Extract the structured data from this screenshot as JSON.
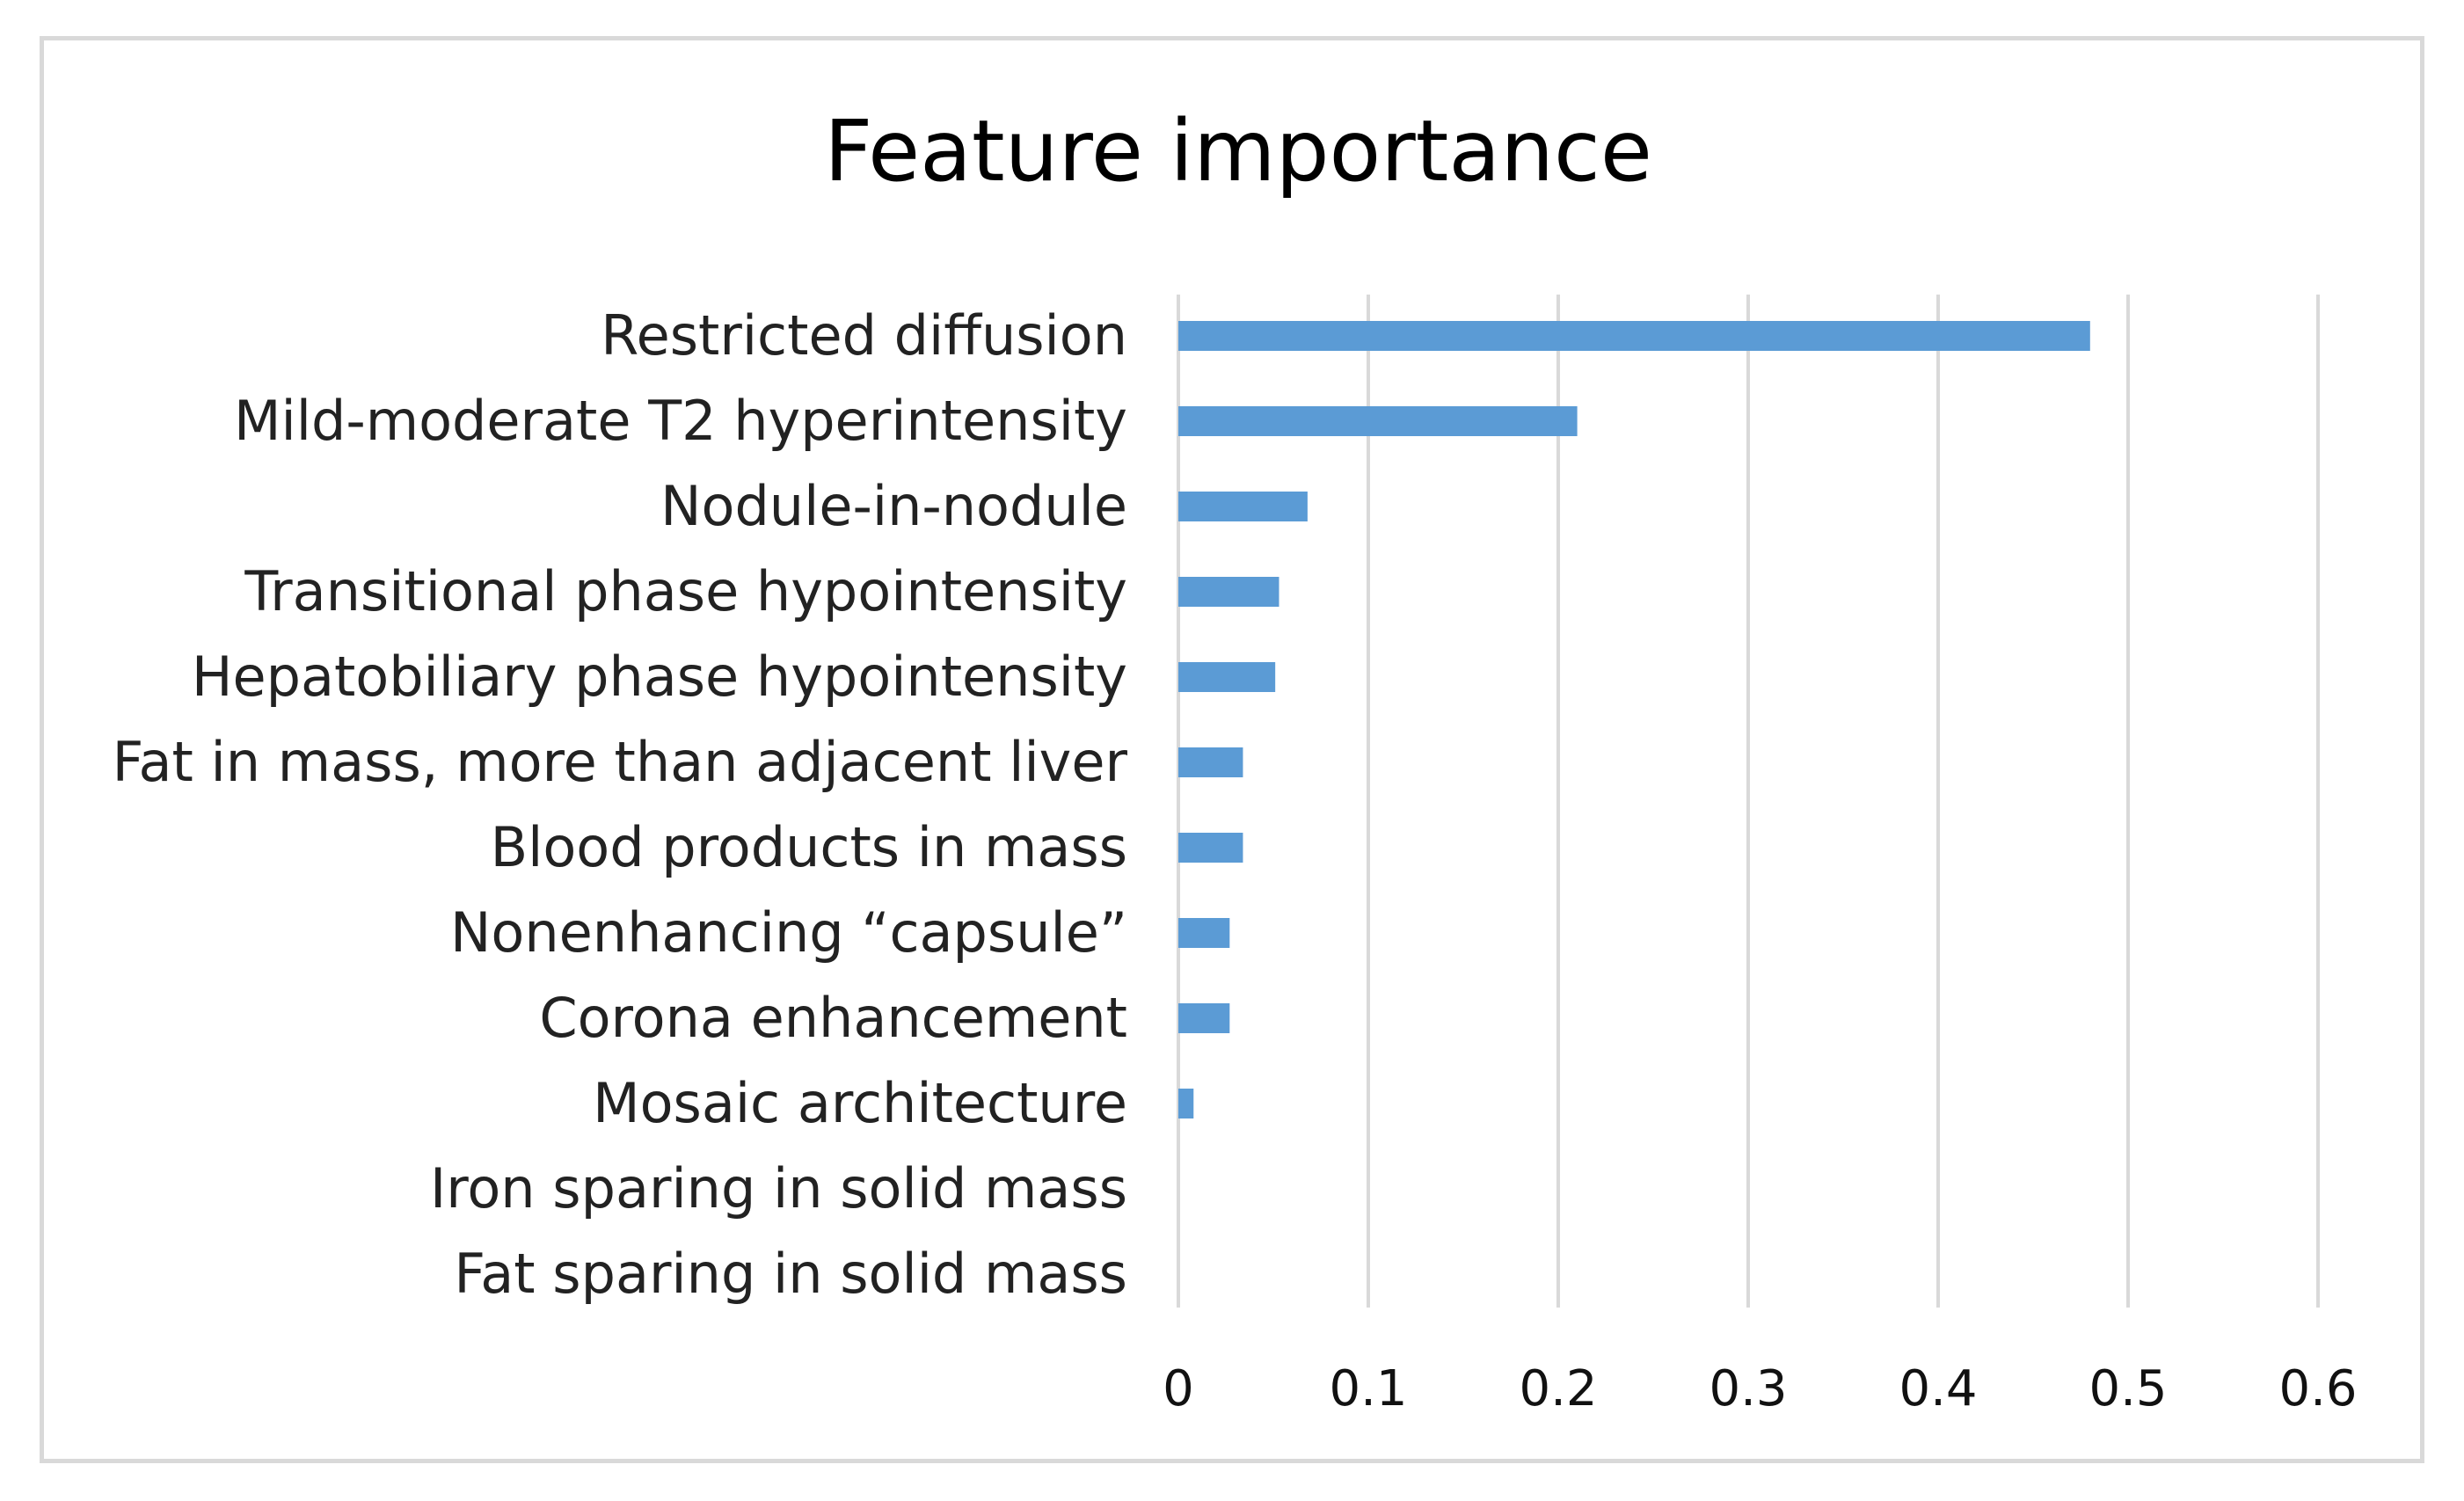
{
  "chart_data": {
    "type": "bar",
    "orientation": "horizontal",
    "title": "Feature importance",
    "xlabel": "",
    "ylabel": "",
    "xlim": [
      0,
      0.6
    ],
    "xticks": [
      "0",
      "0.1",
      "0.2",
      "0.3",
      "0.4",
      "0.5",
      "0.6"
    ],
    "grid": "vertical",
    "legend": "none",
    "bar_color": "#5b9bd5",
    "categories": [
      "Restricted diffusion",
      "Mild-moderate T2 hyperintensity",
      "Nodule-in-nodule",
      "Transitional phase hypointensity",
      "Hepatobiliary phase hypointensity",
      "Fat in mass, more than adjacent liver",
      "Blood products in mass",
      "Nonenhancing “capsule”",
      "Corona enhancement",
      "Mosaic architecture",
      "Iron sparing in solid mass",
      "Fat sparing in solid mass"
    ],
    "values": [
      0.48,
      0.21,
      0.068,
      0.053,
      0.051,
      0.034,
      0.034,
      0.027,
      0.027,
      0.008,
      0,
      0
    ]
  }
}
